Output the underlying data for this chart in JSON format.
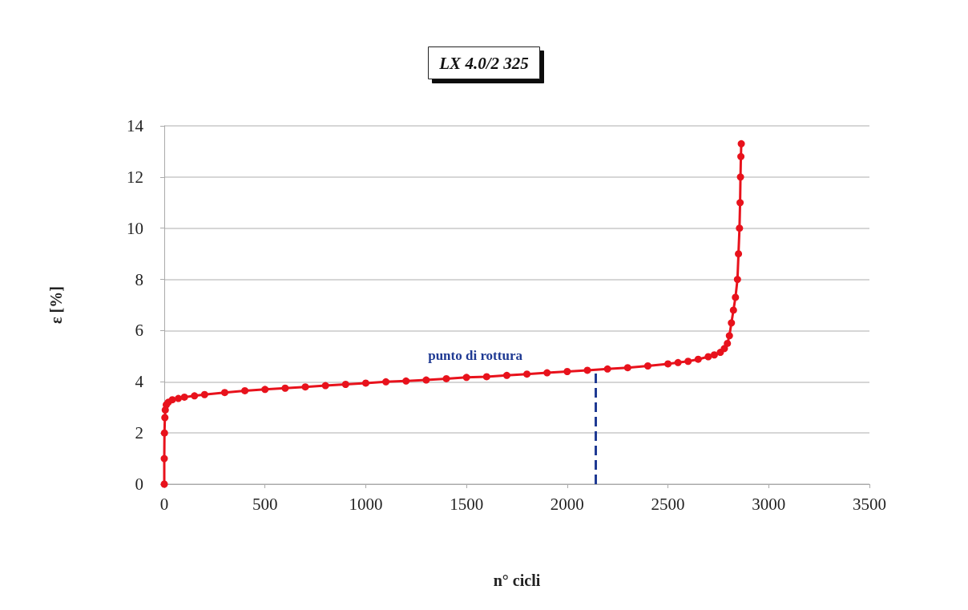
{
  "chart_data": {
    "type": "line",
    "title": "LX 4.0/2 325",
    "xlabel": "n° cicli",
    "ylabel": "ε [%]",
    "x": [
      0,
      0,
      1,
      3,
      5,
      10,
      20,
      40,
      70,
      100,
      150,
      200,
      300,
      400,
      500,
      600,
      700,
      800,
      900,
      1000,
      1100,
      1200,
      1300,
      1400,
      1500,
      1600,
      1700,
      1800,
      1900,
      2000,
      2100,
      2200,
      2300,
      2400,
      2500,
      2550,
      2600,
      2650,
      2700,
      2730,
      2760,
      2780,
      2795,
      2805,
      2815,
      2825,
      2835,
      2845,
      2850,
      2855,
      2858,
      2860,
      2862,
      2864
    ],
    "series": [
      {
        "color": "#e8121c",
        "values": [
          0,
          1,
          2,
          2.6,
          2.9,
          3.1,
          3.2,
          3.3,
          3.35,
          3.4,
          3.45,
          3.5,
          3.58,
          3.65,
          3.7,
          3.75,
          3.8,
          3.85,
          3.9,
          3.95,
          4.0,
          4.03,
          4.07,
          4.12,
          4.17,
          4.2,
          4.25,
          4.3,
          4.35,
          4.4,
          4.45,
          4.5,
          4.55,
          4.62,
          4.7,
          4.75,
          4.8,
          4.88,
          4.98,
          5.05,
          5.15,
          5.3,
          5.5,
          5.8,
          6.3,
          6.8,
          7.3,
          8.0,
          9,
          10,
          11,
          12,
          12.8,
          13.3
        ]
      }
    ],
    "xlim": [
      0,
      3500
    ],
    "xticks": [
      0,
      500,
      1000,
      1500,
      2000,
      2500,
      3000,
      3500
    ],
    "ylim": [
      0,
      14
    ],
    "yticks": [
      0,
      2,
      4,
      6,
      8,
      10,
      12,
      14
    ],
    "grid": "y",
    "marker": "circle",
    "line_style": "solid",
    "ref_lines": [
      {
        "axis": "x",
        "value": 2140,
        "label": "punto di rottura",
        "color": "#1f3a93",
        "line_style": "dashed"
      }
    ]
  }
}
